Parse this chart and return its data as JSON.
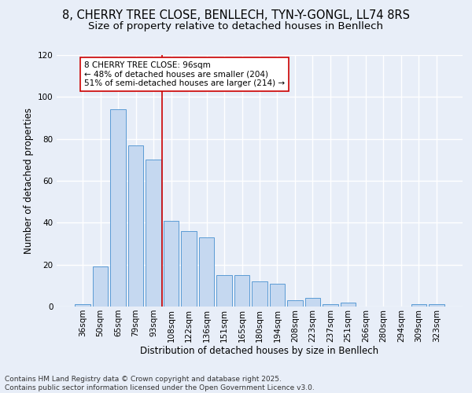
{
  "title1": "8, CHERRY TREE CLOSE, BENLLECH, TYN-Y-GONGL, LL74 8RS",
  "title2": "Size of property relative to detached houses in Benllech",
  "xlabel": "Distribution of detached houses by size in Benllech",
  "ylabel": "Number of detached properties",
  "categories": [
    "36sqm",
    "50sqm",
    "65sqm",
    "79sqm",
    "93sqm",
    "108sqm",
    "122sqm",
    "136sqm",
    "151sqm",
    "165sqm",
    "180sqm",
    "194sqm",
    "208sqm",
    "223sqm",
    "237sqm",
    "251sqm",
    "266sqm",
    "280sqm",
    "294sqm",
    "309sqm",
    "323sqm"
  ],
  "values": [
    1,
    19,
    94,
    77,
    70,
    41,
    36,
    33,
    15,
    15,
    12,
    11,
    3,
    4,
    1,
    2,
    0,
    0,
    0,
    1,
    1
  ],
  "bar_color": "#c5d8f0",
  "bar_edge_color": "#5b9bd5",
  "bg_color": "#e8eef8",
  "grid_color": "#ffffff",
  "vline_x": 4.5,
  "vline_color": "#cc0000",
  "annotation_text": "8 CHERRY TREE CLOSE: 96sqm\n← 48% of detached houses are smaller (204)\n51% of semi-detached houses are larger (214) →",
  "annotation_box_color": "#ffffff",
  "annotation_box_edge": "#cc0000",
  "ylim": [
    0,
    120
  ],
  "yticks": [
    0,
    20,
    40,
    60,
    80,
    100,
    120
  ],
  "footer": "Contains HM Land Registry data © Crown copyright and database right 2025.\nContains public sector information licensed under the Open Government Licence v3.0.",
  "title_fontsize": 10.5,
  "subtitle_fontsize": 9.5,
  "axis_label_fontsize": 8.5,
  "tick_fontsize": 7.5,
  "annotation_fontsize": 7.5,
  "footer_fontsize": 6.5
}
